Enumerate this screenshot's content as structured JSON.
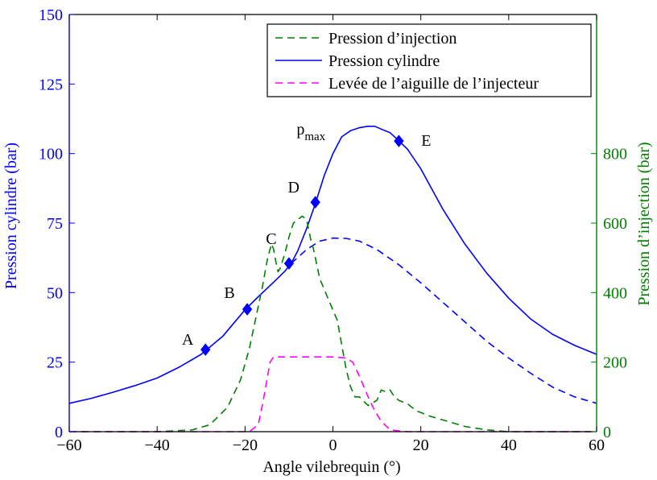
{
  "chart_data": {
    "type": "line",
    "xlabel": "Angle vilebrequin (°)",
    "ylabel_left": "Pression cylindre (bar)",
    "ylabel_right": "Pression d’injection (bar)",
    "xlim": [
      -60,
      60
    ],
    "ylim_left": [
      0,
      150
    ],
    "ylim_right": [
      0,
      1200
    ],
    "x_ticks": [
      -60,
      -40,
      -20,
      0,
      20,
      40,
      60
    ],
    "x_tick_labels": [
      "−60",
      "−40",
      "−20",
      "0",
      "20",
      "40",
      "60"
    ],
    "y_left_ticks": [
      0,
      25,
      50,
      75,
      100,
      125,
      150
    ],
    "y_right_ticks": [
      0,
      200,
      400,
      600,
      800
    ],
    "grid": false,
    "legend_position": "top-right",
    "colors": {
      "cylinder": "#0000ff",
      "injection": "#007f00",
      "needle": "#ff00ff",
      "left_axis": "#0000ff",
      "right_axis": "#007f00"
    },
    "legend": [
      {
        "label": "Pression d’injection",
        "color": "#007f00",
        "style": "dashed"
      },
      {
        "label": "Pression cylindre",
        "color": "#0000ff",
        "style": "solid"
      },
      {
        "label": "Levée de l’aiguille de l’injecteur",
        "color": "#ff00ff",
        "style": "dashed"
      }
    ],
    "series": [
      {
        "name": "Pression cylindre",
        "axis": "left",
        "style": "solid",
        "color": "#0000ff",
        "x": [
          -60,
          -55,
          -50,
          -45,
          -40,
          -35,
          -30,
          -25,
          -20,
          -17,
          -15,
          -13,
          -11,
          -9.5,
          -8,
          -6,
          -4,
          -2,
          0,
          2,
          4,
          6,
          8,
          9.5,
          11,
          13,
          15,
          17,
          20,
          25,
          30,
          35,
          40,
          45,
          50,
          55,
          60
        ],
        "y": [
          10.2,
          12,
          14.2,
          16.6,
          19.3,
          23.2,
          27.8,
          34.4,
          43.8,
          48.5,
          51.5,
          54.5,
          57.6,
          60.5,
          65,
          73,
          82,
          92,
          100,
          106,
          108.2,
          109.3,
          109.8,
          109.8,
          108.8,
          107.5,
          104.6,
          101.5,
          94.5,
          80,
          67.5,
          57,
          48,
          40.5,
          35,
          31,
          27.8
        ]
      },
      {
        "name": "",
        "axis": "left",
        "style": "dashed",
        "color": "#0000ff",
        "x": [
          -9.5,
          -6,
          -3,
          0,
          3,
          6,
          10,
          15,
          20,
          25,
          30,
          35,
          40,
          45,
          50,
          55,
          60
        ],
        "y": [
          60.5,
          65.5,
          68.5,
          69.6,
          69.5,
          68.5,
          65.5,
          60,
          53.5,
          46.5,
          39.5,
          32.5,
          26.5,
          21,
          16,
          12.5,
          10.2
        ]
      },
      {
        "name": "Pression d’injection",
        "axis": "right",
        "style": "dashed",
        "color": "#007f00",
        "x": [
          -60,
          -40,
          -32,
          -28,
          -24,
          -21,
          -19,
          -17.5,
          -16,
          -15,
          -14,
          -13.5,
          -13,
          -12.5,
          -12,
          -11,
          -10,
          -9,
          -8,
          -7,
          -6,
          -5,
          -4.5,
          -4,
          -3,
          -2,
          -1,
          0,
          1,
          2,
          3,
          4,
          5,
          6,
          8,
          10,
          11,
          12,
          13,
          14,
          15,
          17,
          19,
          22,
          26,
          30,
          35,
          40,
          50,
          60
        ],
        "y": [
          0,
          0,
          5,
          20,
          70,
          150,
          240,
          330,
          420,
          490,
          540,
          525,
          490,
          460,
          470,
          510,
          560,
          600,
          610,
          620,
          610,
          550,
          530,
          500,
          440,
          410,
          380,
          350,
          320,
          250,
          180,
          130,
          100,
          100,
          75,
          90,
          120,
          115,
          120,
          100,
          90,
          80,
          60,
          45,
          30,
          15,
          5,
          0,
          0,
          0
        ]
      },
      {
        "name": "Levée de l’aiguille de l’injecteur",
        "axis": "right",
        "style": "dashed",
        "color": "#ff00ff",
        "x": [
          -60,
          -19,
          -17,
          -16,
          -15,
          -14.3,
          -13.5,
          -10,
          -5,
          0,
          3,
          4.5,
          6,
          8,
          9.5,
          11,
          13,
          17,
          60
        ],
        "y": [
          0,
          0,
          20,
          80,
          150,
          200,
          215,
          215,
          215,
          215,
          212,
          200,
          160,
          100,
          60,
          30,
          5,
          0,
          0
        ]
      }
    ],
    "markers": [
      {
        "label": "A",
        "x": -29,
        "y": 29.5
      },
      {
        "label": "B",
        "x": -19.5,
        "y": 44
      },
      {
        "label": "C",
        "x": -10,
        "y": 60.5
      },
      {
        "label": "D",
        "x": -4,
        "y": 82.5
      },
      {
        "label": "E",
        "x": 15,
        "y": 104.5
      }
    ],
    "annotations": [
      {
        "label": "p",
        "subscript": "max",
        "x": 9.5,
        "y": 109.8
      }
    ]
  }
}
